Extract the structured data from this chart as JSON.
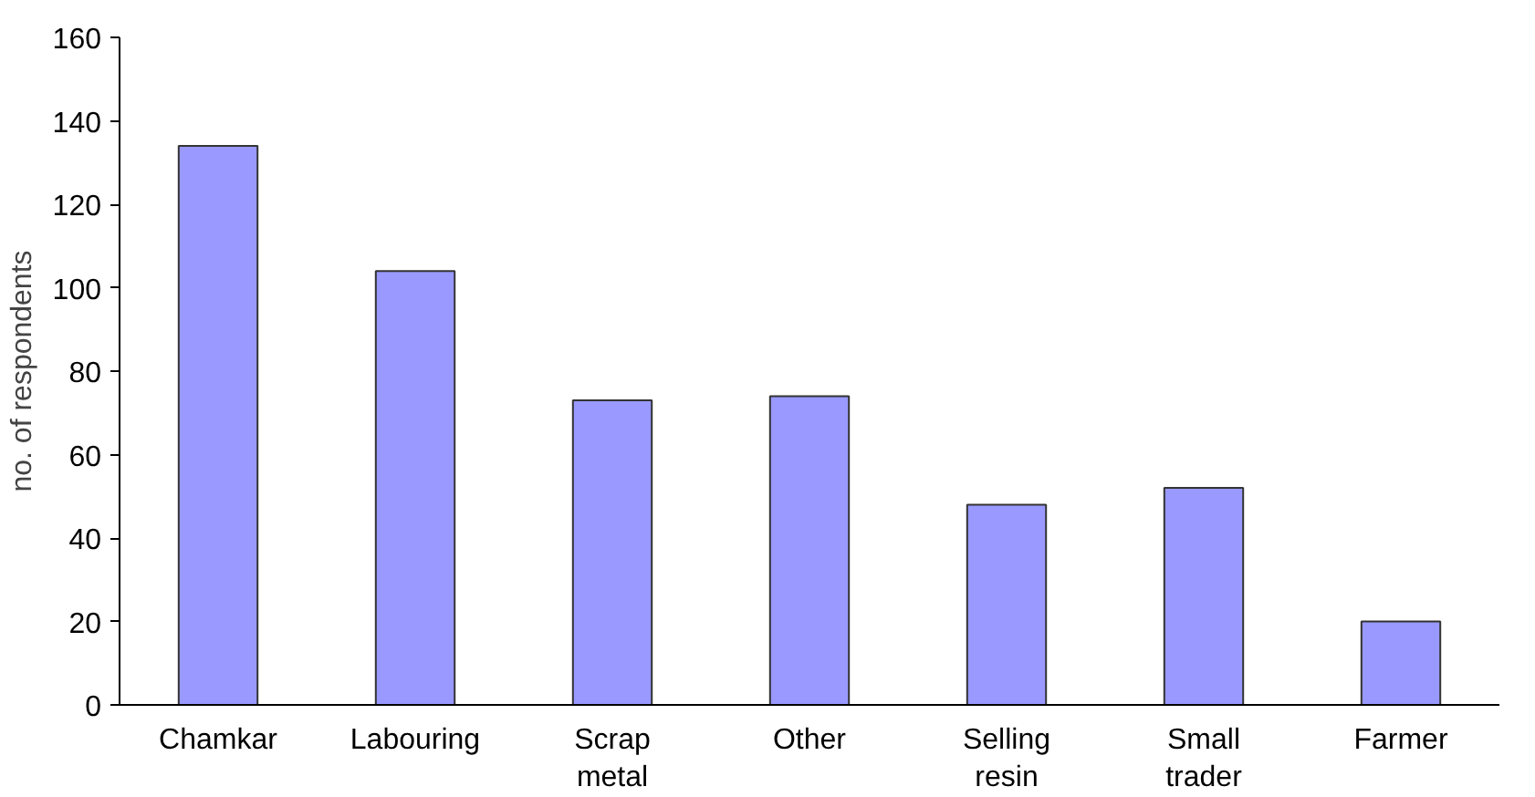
{
  "chart_data": {
    "type": "bar",
    "ylabel": "no. of respondents",
    "categories": [
      "Chamkar",
      "Labouring",
      "Scrap\nmetal",
      "Other",
      "Selling\nresin",
      "Small\ntrader",
      "Farmer"
    ],
    "values": [
      134,
      104,
      73,
      74,
      48,
      52,
      20
    ],
    "color": "#9999ff",
    "ylim": [
      0,
      160
    ],
    "yticks": [
      0,
      20,
      40,
      60,
      80,
      100,
      120,
      140,
      160
    ],
    "grid": false
  }
}
